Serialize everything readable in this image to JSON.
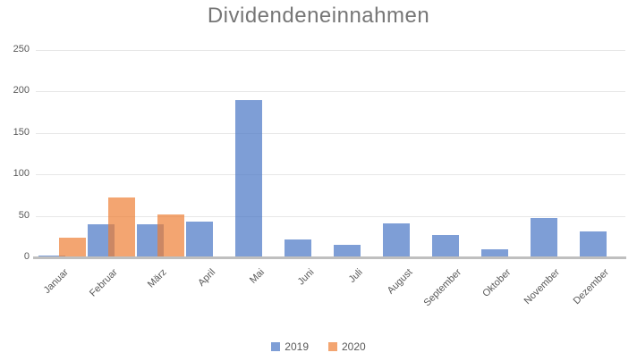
{
  "chart_data": {
    "type": "bar",
    "title": "Dividendeneinnahmen",
    "categories": [
      "Januar",
      "Februar",
      "März",
      "April",
      "Mai",
      "Juni",
      "Juli",
      "August",
      "September",
      "Oktober",
      "November",
      "Dezember"
    ],
    "series": [
      {
        "name": "2019",
        "color": "#4472C4",
        "values": [
          2,
          40,
          40,
          43,
          190,
          22,
          15,
          41,
          27,
          10,
          47,
          31
        ]
      },
      {
        "name": "2020",
        "color": "#ED7D31",
        "values": [
          24,
          72,
          52,
          null,
          null,
          null,
          null,
          null,
          null,
          null,
          null,
          null
        ]
      }
    ],
    "xlabel": "",
    "ylabel": "",
    "ylim": [
      0,
      250
    ],
    "yticks": [
      0,
      50,
      100,
      150,
      200,
      250
    ],
    "grid": true,
    "legend_position": "bottom",
    "bar_opacity": 0.69,
    "styling": {
      "title_color": "#767676",
      "axis_text_color": "#595959",
      "gridline_color": "#e7e7e7",
      "axis_line_color": "#bfbfbf",
      "background_color": "#ffffff"
    }
  }
}
